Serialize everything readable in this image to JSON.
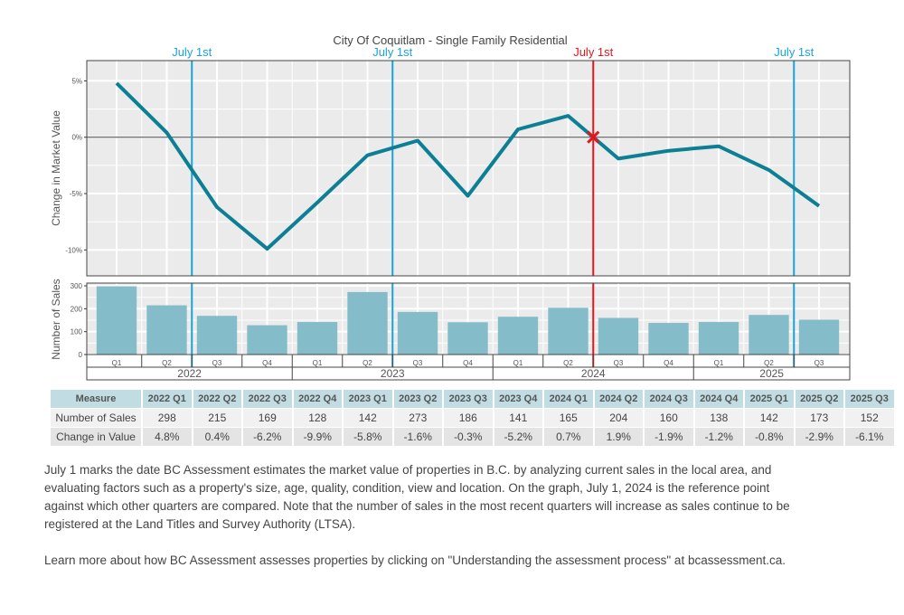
{
  "chart_data": {
    "type": "line",
    "title": "City Of Coquitlam - Single Family Residential",
    "categories": [
      "2022 Q1",
      "2022 Q2",
      "2022 Q3",
      "2022 Q4",
      "2023 Q1",
      "2023 Q2",
      "2023 Q3",
      "2023 Q4",
      "2024 Q1",
      "2024 Q2",
      "2024 Q3",
      "2024 Q4",
      "2025 Q1",
      "2025 Q2",
      "2025 Q3"
    ],
    "quarter_labels": [
      "Q1",
      "Q2",
      "Q3",
      "Q4",
      "Q1",
      "Q2",
      "Q3",
      "Q4",
      "Q1",
      "Q2",
      "Q3",
      "Q4",
      "Q1",
      "Q2",
      "Q3"
    ],
    "year_labels": [
      "2022",
      "2023",
      "2024",
      "2025"
    ],
    "year_quarter_counts": [
      4,
      4,
      4,
      3
    ],
    "series": [
      {
        "name": "Change in Market Value",
        "type": "line",
        "unit": "%",
        "color": "#0d7f95",
        "values": [
          4.8,
          0.4,
          -6.2,
          -9.9,
          -5.8,
          -1.6,
          -0.3,
          -5.2,
          0.7,
          1.9,
          -1.9,
          -1.2,
          -0.8,
          -2.9,
          -6.1
        ]
      },
      {
        "name": "Number of Sales",
        "type": "bar",
        "color": "#85bcc9",
        "values": [
          298,
          215,
          169,
          128,
          142,
          273,
          186,
          141,
          165,
          204,
          160,
          138,
          142,
          173,
          152
        ]
      }
    ],
    "top_panel": {
      "ylabel": "Change in Market Value",
      "ylim": [
        -12.3,
        6.8
      ],
      "yticks": [
        5,
        0,
        -5,
        -10
      ],
      "ytick_labels": [
        "5%",
        "0%",
        "-5%",
        "-10%"
      ]
    },
    "bottom_panel": {
      "ylabel": "Number of Sales",
      "ylim": [
        0,
        312
      ],
      "yticks": [
        300,
        200,
        100,
        0
      ],
      "ytick_labels": [
        "300",
        "200",
        "100",
        "0"
      ]
    },
    "reference_lines": [
      {
        "label": "July 1st",
        "position_between": [
          "2022 Q2",
          "2022 Q3"
        ],
        "color": "#1aa3db"
      },
      {
        "label": "July 1st",
        "position_between": [
          "2023 Q2",
          "2023 Q3"
        ],
        "color": "#1aa3db"
      },
      {
        "label": "July 1st",
        "position_between": [
          "2024 Q2",
          "2024 Q3"
        ],
        "color": "#e8141c",
        "reference": true
      },
      {
        "label": "July 1st",
        "position_between": [
          "2025 Q2",
          "2025 Q3"
        ],
        "color": "#1aa3db"
      }
    ],
    "reference_marker": {
      "symbol": "x",
      "value": 0,
      "color": "#e8141c"
    },
    "grid": true,
    "panel_background": "#ebebeb"
  },
  "table": {
    "header": [
      "Measure",
      "2022 Q1",
      "2022 Q2",
      "2022 Q3",
      "2022 Q4",
      "2023 Q1",
      "2023 Q2",
      "2023 Q3",
      "2023 Q4",
      "2024 Q1",
      "2024 Q2",
      "2024 Q3",
      "2024 Q4",
      "2025 Q1",
      "2025 Q2",
      "2025 Q3"
    ],
    "rows": [
      {
        "label": "Number of Sales",
        "values": [
          "298",
          "215",
          "169",
          "128",
          "142",
          "273",
          "186",
          "141",
          "165",
          "204",
          "160",
          "138",
          "142",
          "173",
          "152"
        ]
      },
      {
        "label": "Change in Value",
        "values": [
          "4.8%",
          "0.4%",
          "-6.2%",
          "-9.9%",
          "-5.8%",
          "-1.6%",
          "-0.3%",
          "-5.2%",
          "0.7%",
          "1.9%",
          "-1.9%",
          "-1.2%",
          "-0.8%",
          "-2.9%",
          "-6.1%"
        ]
      }
    ],
    "separators": {
      "2022 Q3": "blue",
      "2023 Q3": "blue",
      "2024 Q3": "red",
      "2025 Q3": "blue"
    }
  },
  "notes": {
    "paragraph1": "July 1 marks the date BC Assessment estimates the market value of properties in B.C. by analyzing current sales in the local area, and evaluating factors such as a property's size, age, quality, condition, view and location. On the graph, July 1, 2024 is the reference point against which other quarters are compared. Note that the number of sales in the most recent quarters will increase as sales continue to be registered at the Land Titles and Survey Authority (LTSA).",
    "paragraph2": "Learn more about how BC Assessment assesses properties by clicking on \"Understanding the assessment process\" at bcassessment.ca."
  }
}
